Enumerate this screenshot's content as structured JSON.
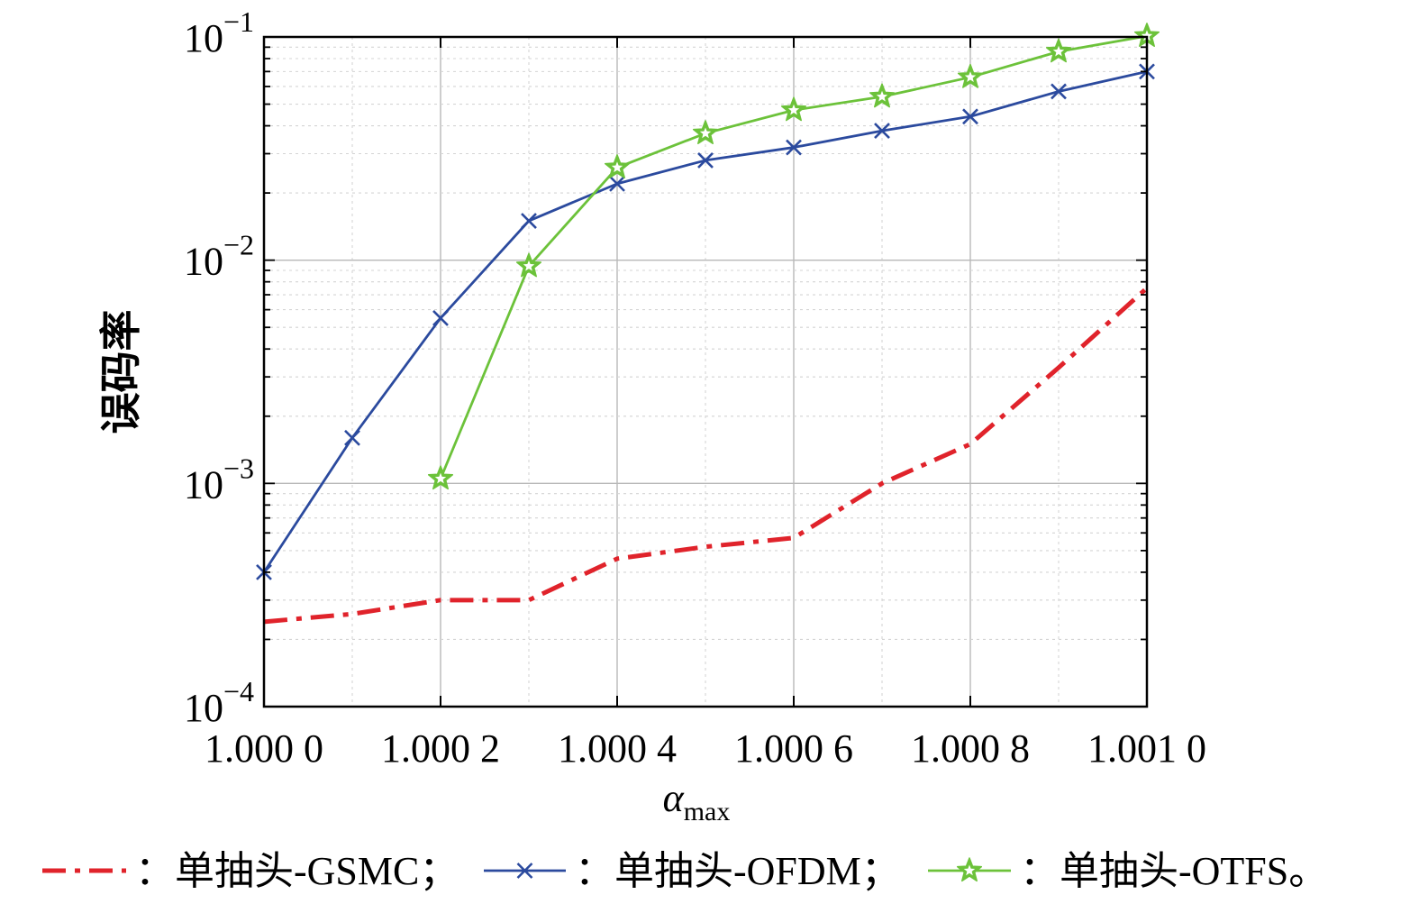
{
  "chart_data": {
    "type": "line",
    "xlabel_main": "α",
    "xlabel_sub": "max",
    "ylabel": "误码率",
    "x_ticks": [
      "1.000 0",
      "1.000 2",
      "1.000 4",
      "1.000 6",
      "1.000 8",
      "1.001 0"
    ],
    "x_tick_values": [
      1.0,
      1.0002,
      1.0004,
      1.0006,
      1.0008,
      1.001
    ],
    "y_ticks": [
      {
        "base": "10",
        "exp": "−4",
        "value": 0.0001
      },
      {
        "base": "10",
        "exp": "−3",
        "value": 0.001
      },
      {
        "base": "10",
        "exp": "−2",
        "value": 0.01
      },
      {
        "base": "10",
        "exp": "−1",
        "value": 0.1
      }
    ],
    "xlim": [
      1.0,
      1.001
    ],
    "ylim": [
      0.0001,
      0.1
    ],
    "yscale": "log",
    "grid": true,
    "legend_position": "bottom",
    "legend_separator": "；",
    "legend_colon": "：",
    "legend_end": "。",
    "series": [
      {
        "name": "单抽头-GSMC",
        "color": "#e0232b",
        "style": "dashdot",
        "marker": "none",
        "x": [
          1.0,
          1.0001,
          1.0002,
          1.0003,
          1.0004,
          1.0005,
          1.0006,
          1.0007,
          1.0008,
          1.0009,
          1.001
        ],
        "y": [
          0.00024,
          0.00026,
          0.0003,
          0.0003,
          0.00046,
          0.00052,
          0.00057,
          0.001,
          0.0015,
          0.0033,
          0.0075
        ]
      },
      {
        "name": "单抽头-OFDM",
        "color": "#2b4a9e",
        "style": "solid",
        "marker": "x",
        "x": [
          1.0,
          1.0001,
          1.0002,
          1.0003,
          1.0004,
          1.0005,
          1.0006,
          1.0007,
          1.0008,
          1.0009,
          1.001
        ],
        "y": [
          0.0004,
          0.0016,
          0.0055,
          0.015,
          0.022,
          0.028,
          0.032,
          0.038,
          0.044,
          0.057,
          0.07
        ]
      },
      {
        "name": "单抽头-OTFS",
        "color": "#6cc23a",
        "style": "solid",
        "marker": "star",
        "x": [
          1.0002,
          1.0003,
          1.0004,
          1.0005,
          1.0006,
          1.0007,
          1.0008,
          1.0009,
          1.001
        ],
        "y": [
          0.00105,
          0.0094,
          0.026,
          0.037,
          0.047,
          0.054,
          0.066,
          0.086,
          0.101
        ]
      }
    ]
  }
}
